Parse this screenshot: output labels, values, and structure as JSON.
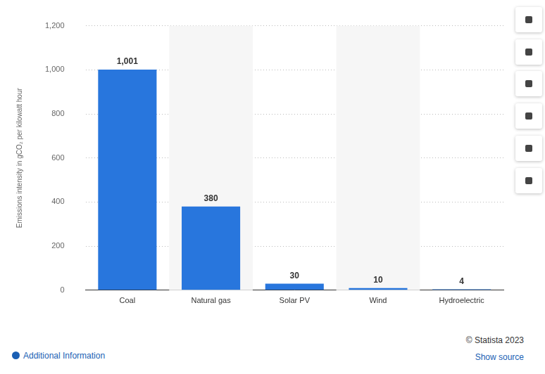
{
  "chart_data": {
    "type": "bar",
    "y_label": "Emissions intensity in gCO₂ per kilowatt hour",
    "categories": [
      "Coal",
      "Natural gas",
      "Solar PV",
      "Wind",
      "Hydroelectric"
    ],
    "values": [
      1001,
      380,
      30,
      10,
      4
    ],
    "value_labels": [
      "1,001",
      "380",
      "30",
      "10",
      "4"
    ],
    "color": "#2876dd",
    "ylim": [
      0,
      1200
    ],
    "yticks": [
      0,
      200,
      400,
      600,
      800,
      {
        "value": 1000,
        "label": "1,000"
      },
      {
        "value": 1200,
        "label": "1,200"
      }
    ],
    "grid": true,
    "data_labels": true
  },
  "footer": {
    "credit": "© Statista 2023",
    "links": [
      "Additional Information",
      "Show source"
    ]
  }
}
